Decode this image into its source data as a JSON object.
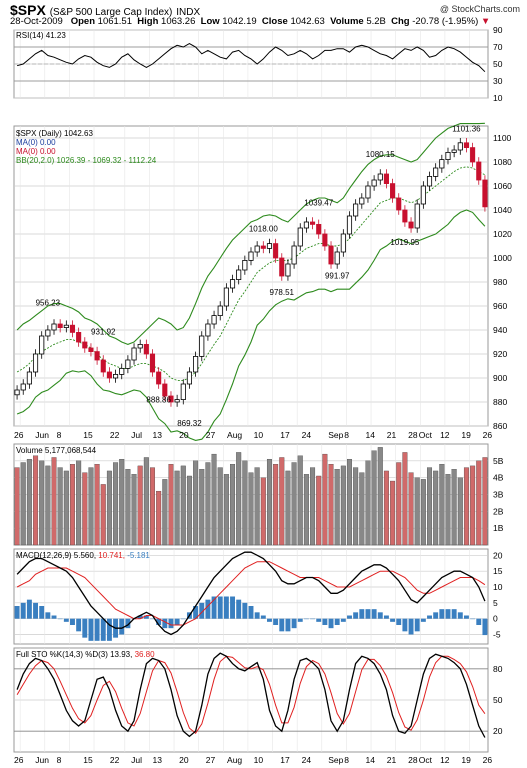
{
  "header": {
    "symbol": "$SPX",
    "name": "(S&P 500 Large Cap Index)",
    "exchange": "INDX",
    "watermark": "@ StockCharts.com",
    "date": "28-Oct-2009",
    "open_label": "Open",
    "open": "1061.51",
    "high_label": "High",
    "high": "1063.26",
    "low_label": "Low",
    "low": "1042.19",
    "close_label": "Close",
    "close": "1042.63",
    "volume_label": "Volume",
    "volume": "5.2B",
    "chg_label": "Chg",
    "chg": "-20.78 (-1.95%)",
    "chg_marker": "▼"
  },
  "legend": {
    "rsi": "RSI(14) 41.23",
    "price": "$SPX (Daily) 1042.63",
    "ma1": "MA(0) 0.00",
    "ma2": "MA(0) 0.00",
    "bb": "BB(20,2.0) 1026.39 - 1069.32 - 1112.24",
    "volume": "Volume 5,177,068,544",
    "macd_main": "MACD(12,26,9) 5.560,",
    "macd_sig": "10.741,",
    "macd_hist": "-5.181",
    "sto_main": "Full STO %K(14,3) %D(3) 13.93,",
    "sto_d": "36.80"
  },
  "colors": {
    "up": "#000000",
    "down": "#c8102e",
    "band": "#2e8b1e",
    "vol_down": "#d06a6a",
    "vol_up": "#888888",
    "hist": "#3a7fc0",
    "signal": "#e02020",
    "grid": "#cccccc"
  },
  "x_labels": [
    "26",
    "Jun",
    "8",
    "15",
    "22",
    "Jul",
    "13",
    "20",
    "27",
    "Aug",
    "10",
    "17",
    "24",
    "Sep",
    "8",
    "14",
    "21",
    "28",
    "Oct",
    "12",
    "19",
    "26"
  ],
  "chart_data": [
    {
      "type": "line",
      "title": "RSI(14) 41.23",
      "yticks": [
        10,
        30,
        50,
        70,
        90
      ],
      "ylim": [
        10,
        90
      ],
      "series": [
        {
          "name": "RSI(14)",
          "values": [
            48,
            50,
            56,
            62,
            66,
            60,
            58,
            55,
            52,
            50,
            56,
            60,
            58,
            52,
            48,
            46,
            50,
            58,
            62,
            55,
            50,
            46,
            50,
            56,
            62,
            68,
            72,
            70,
            74,
            70,
            62,
            66,
            62,
            58,
            56,
            64,
            66,
            60,
            56,
            50,
            56,
            64,
            70,
            66,
            60,
            62,
            66,
            62,
            56,
            60,
            66,
            66,
            68,
            68,
            64,
            70,
            72,
            70,
            66,
            62,
            60,
            56,
            62,
            68,
            66,
            70,
            66,
            58,
            60,
            66,
            70,
            68,
            64,
            58,
            52,
            48,
            41
          ]
        }
      ]
    },
    {
      "type": "candlestick",
      "title": "$SPX (Daily) 1042.63",
      "ylim": [
        860,
        1110
      ],
      "yticks": [
        860,
        880,
        900,
        920,
        940,
        960,
        980,
        1000,
        1020,
        1040,
        1060,
        1080,
        1100
      ],
      "annotations": [
        {
          "text": "956.23",
          "value": 956.23
        },
        {
          "text": "931.92",
          "value": 931.92
        },
        {
          "text": "888.86",
          "value": 888.86
        },
        {
          "text": "869.32",
          "value": 869.32
        },
        {
          "text": "1018.00",
          "value": 1018.0
        },
        {
          "text": "978.51",
          "value": 978.51
        },
        {
          "text": "1039.47",
          "value": 1039.47
        },
        {
          "text": "991.97",
          "value": 991.97
        },
        {
          "text": "1080.15",
          "value": 1080.15
        },
        {
          "text": "1019.95",
          "value": 1019.95
        },
        {
          "text": "1101.36",
          "value": 1101.36
        }
      ],
      "close": [
        890,
        895,
        905,
        920,
        935,
        940,
        945,
        942,
        944,
        938,
        930,
        925,
        922,
        915,
        905,
        900,
        903,
        908,
        915,
        925,
        928,
        920,
        905,
        895,
        885,
        880,
        882,
        895,
        905,
        918,
        935,
        945,
        952,
        960,
        975,
        982,
        990,
        998,
        1005,
        1010,
        1008,
        1012,
        1000,
        985,
        995,
        1010,
        1025,
        1030,
        1028,
        1020,
        1010,
        995,
        1005,
        1020,
        1035,
        1045,
        1050,
        1060,
        1065,
        1070,
        1062,
        1050,
        1040,
        1030,
        1025,
        1045,
        1060,
        1068,
        1075,
        1082,
        1088,
        1090,
        1096,
        1092,
        1080,
        1065,
        1042.63
      ],
      "bb_upper": [
        940,
        945,
        948,
        952,
        956,
        960,
        962,
        962,
        960,
        958,
        955,
        950,
        948,
        945,
        940,
        935,
        933,
        930,
        928,
        930,
        935,
        940,
        945,
        950,
        948,
        945,
        940,
        942,
        950,
        962,
        975,
        985,
        992,
        1000,
        1008,
        1015,
        1020,
        1025,
        1030,
        1032,
        1035,
        1036,
        1035,
        1032,
        1030,
        1035,
        1040,
        1045,
        1048,
        1050,
        1050,
        1048,
        1046,
        1050,
        1058,
        1065,
        1072,
        1078,
        1082,
        1085,
        1086,
        1086,
        1084,
        1082,
        1080,
        1082,
        1088,
        1094,
        1100,
        1104,
        1108,
        1110,
        1112,
        1112,
        1112,
        1112,
        1112.24
      ],
      "bb_mid": [
        905,
        908,
        912,
        918,
        922,
        925,
        928,
        930,
        932,
        932,
        930,
        928,
        925,
        920,
        915,
        912,
        910,
        908,
        908,
        910,
        912,
        912,
        910,
        908,
        905,
        900,
        898,
        898,
        900,
        905,
        912,
        920,
        928,
        935,
        945,
        955,
        965,
        972,
        980,
        988,
        992,
        996,
        998,
        998,
        998,
        1000,
        1004,
        1008,
        1010,
        1012,
        1012,
        1010,
        1010,
        1012,
        1016,
        1022,
        1028,
        1034,
        1040,
        1046,
        1048,
        1050,
        1050,
        1048,
        1046,
        1048,
        1052,
        1056,
        1060,
        1064,
        1068,
        1072,
        1075,
        1076,
        1075,
        1072,
        1069.32
      ],
      "bb_lower": [
        870,
        872,
        876,
        884,
        888,
        890,
        894,
        898,
        904,
        906,
        905,
        906,
        902,
        895,
        890,
        889,
        887,
        886,
        888,
        890,
        889,
        884,
        875,
        866,
        862,
        855,
        856,
        854,
        850,
        848,
        849,
        855,
        864,
        870,
        882,
        895,
        910,
        919,
        930,
        944,
        949,
        956,
        961,
        964,
        966,
        965,
        968,
        971,
        972,
        974,
        974,
        972,
        974,
        974,
        974,
        979,
        984,
        990,
        998,
        1007,
        1010,
        1014,
        1016,
        1014,
        1012,
        1014,
        1016,
        1018,
        1020,
        1024,
        1028,
        1034,
        1038,
        1040,
        1038,
        1032,
        1026.39
      ]
    },
    {
      "type": "bar",
      "title": "Volume 5,177,068,544",
      "yticks": [
        "1B",
        "2B",
        "3B",
        "4B",
        "5B"
      ],
      "ylim": [
        0,
        6
      ],
      "values": [
        4.6,
        4.9,
        5.1,
        5.3,
        5.0,
        4.7,
        5.2,
        4.6,
        4.4,
        4.8,
        5.0,
        4.3,
        4.6,
        4.8,
        3.6,
        4.4,
        4.9,
        5.1,
        4.5,
        4.2,
        4.7,
        5.2,
        4.6,
        3.2,
        3.9,
        4.8,
        4.4,
        4.7,
        4.1,
        5.0,
        4.5,
        4.9,
        5.4,
        4.6,
        4.2,
        4.8,
        5.5,
        5.0,
        4.3,
        4.6,
        4.0,
        5.1,
        4.8,
        5.2,
        4.4,
        4.9,
        5.3,
        4.2,
        4.6,
        4.1,
        5.4,
        4.8,
        4.5,
        4.7,
        5.1,
        4.6,
        4.3,
        5.0,
        5.6,
        5.8,
        4.4,
        3.8,
        4.9,
        5.5,
        4.3,
        4.0,
        3.9,
        4.6,
        4.4,
        4.8,
        4.2,
        4.5,
        4.0,
        4.6,
        4.7,
        5.0,
        5.2
      ],
      "down_days": [
        0,
        3,
        6,
        9,
        11,
        13,
        14,
        20,
        22,
        23,
        25,
        40,
        42,
        43,
        49,
        50,
        51,
        60,
        61,
        62,
        63,
        64,
        73,
        74,
        75,
        76
      ]
    },
    {
      "type": "line",
      "title": "MACD(12,26,9) 5.560, 10.741, -5.181",
      "yticks": [
        -5,
        0,
        5,
        10,
        15,
        20
      ],
      "ylim": [
        -8,
        22
      ],
      "series": [
        {
          "name": "MACD",
          "values": [
            14,
            16,
            18,
            19,
            19,
            18,
            17,
            16,
            15,
            13,
            10,
            7,
            4,
            2,
            0,
            -2,
            -3,
            -3,
            -2,
            0,
            1,
            2,
            1,
            -2,
            -4,
            -5,
            -4,
            -2,
            1,
            4,
            7,
            10,
            13,
            15,
            17,
            19,
            20,
            21,
            21,
            20,
            19,
            17,
            15,
            12,
            11,
            11,
            12,
            13,
            13,
            12,
            10,
            8,
            8,
            9,
            11,
            13,
            15,
            16,
            17,
            17,
            16,
            14,
            12,
            9,
            6,
            5,
            7,
            9,
            11,
            13,
            14,
            15,
            15,
            14,
            13,
            10,
            5.56
          ]
        },
        {
          "name": "Signal",
          "values": [
            10,
            11,
            12,
            14,
            15,
            16,
            16,
            16,
            16,
            15,
            14,
            13,
            11,
            9,
            7,
            5,
            3,
            2,
            1,
            0,
            0,
            1,
            1,
            0,
            -1,
            -2,
            -2,
            -2,
            -1,
            0,
            2,
            4,
            6,
            8,
            10,
            12,
            14,
            16,
            17,
            18,
            18,
            18,
            17,
            16,
            15,
            14,
            13,
            13,
            13,
            13,
            12,
            11,
            10,
            10,
            10,
            11,
            12,
            13,
            14,
            15,
            15,
            15,
            14,
            13,
            11,
            9,
            8,
            8,
            9,
            10,
            11,
            12,
            13,
            13,
            13,
            12,
            10.741
          ]
        },
        {
          "name": "Histogram",
          "values": [
            4,
            5,
            6,
            5,
            4,
            2,
            1,
            0,
            -1,
            -2,
            -4,
            -6,
            -7,
            -7,
            -7,
            -7,
            -6,
            -5,
            -3,
            0,
            1,
            1,
            0,
            -2,
            -3,
            -3,
            -2,
            0,
            2,
            4,
            5,
            6,
            7,
            7,
            7,
            7,
            6,
            5,
            4,
            2,
            1,
            -1,
            -2,
            -4,
            -4,
            -3,
            -1,
            0,
            0,
            -1,
            -2,
            -3,
            -2,
            -1,
            1,
            2,
            3,
            3,
            3,
            2,
            1,
            -1,
            -2,
            -4,
            -5,
            -4,
            -1,
            1,
            2,
            3,
            3,
            3,
            2,
            1,
            0,
            -2,
            -5.181
          ]
        }
      ]
    },
    {
      "type": "line",
      "title": "Full STO %K(14,3) %D(3) 13.93, 36.80",
      "yticks": [
        20,
        50,
        80
      ],
      "ylim": [
        0,
        100
      ],
      "series": [
        {
          "name": "%K",
          "values": [
            60,
            75,
            85,
            90,
            88,
            80,
            70,
            55,
            40,
            30,
            25,
            30,
            50,
            70,
            72,
            60,
            40,
            25,
            20,
            30,
            60,
            85,
            90,
            88,
            80,
            60,
            35,
            20,
            15,
            20,
            45,
            75,
            90,
            95,
            92,
            85,
            80,
            78,
            82,
            86,
            70,
            40,
            25,
            20,
            40,
            70,
            88,
            90,
            86,
            80,
            60,
            30,
            20,
            30,
            60,
            85,
            92,
            90,
            85,
            75,
            60,
            35,
            20,
            18,
            25,
            50,
            75,
            90,
            94,
            92,
            90,
            86,
            80,
            65,
            45,
            25,
            13.93
          ]
        },
        {
          "name": "%D",
          "values": [
            55,
            65,
            75,
            83,
            88,
            86,
            80,
            68,
            55,
            42,
            32,
            28,
            35,
            50,
            64,
            68,
            58,
            42,
            28,
            25,
            37,
            58,
            78,
            88,
            86,
            76,
            58,
            38,
            23,
            18,
            27,
            47,
            70,
            87,
            92,
            91,
            86,
            81,
            80,
            82,
            79,
            65,
            45,
            28,
            28,
            43,
            66,
            82,
            88,
            85,
            75,
            57,
            37,
            27,
            37,
            58,
            79,
            89,
            89,
            83,
            73,
            57,
            38,
            24,
            21,
            31,
            50,
            72,
            86,
            92,
            92,
            89,
            85,
            77,
            63,
            45,
            36.8
          ]
        }
      ]
    }
  ]
}
